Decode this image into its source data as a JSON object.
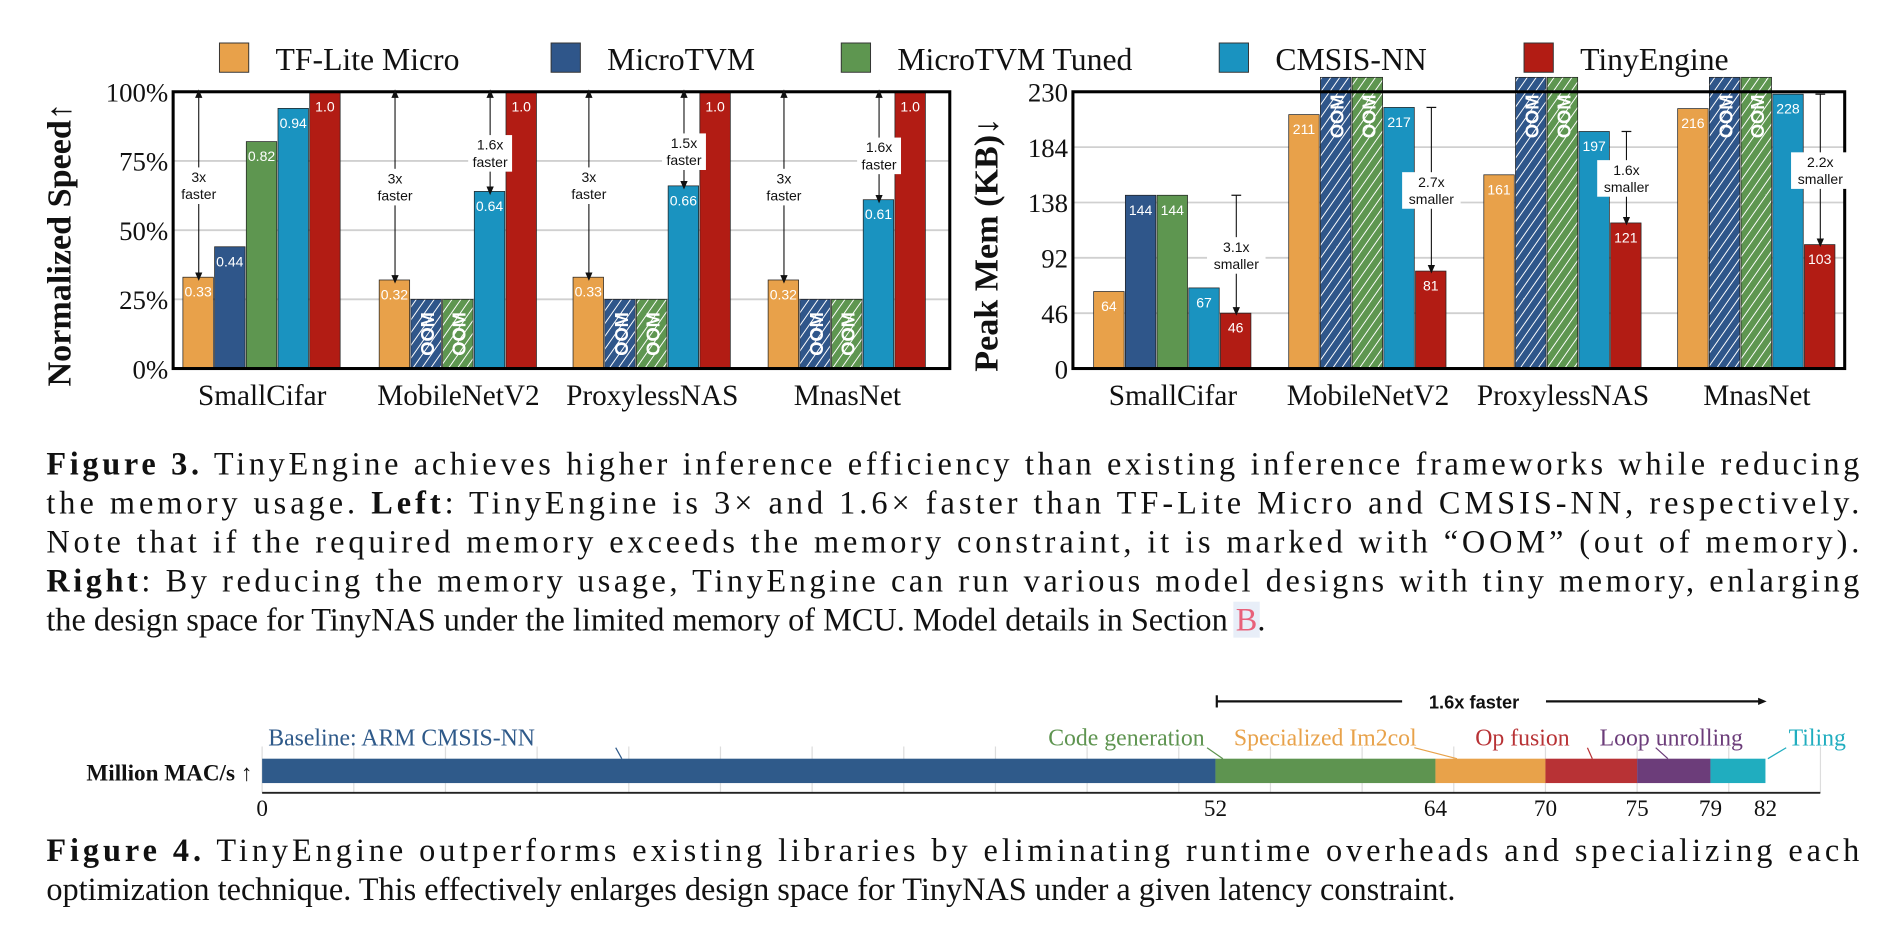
{
  "colors": {
    "tflite": "#E8A14A",
    "microtvm": "#2F568A",
    "microtvm_tuned": "#5E9650",
    "cmsis": "#1A93C0",
    "tinyengine": "#B21C14",
    "grid": "#d0d0d0",
    "section_link": "#E8617A"
  },
  "legend": [
    {
      "label": "TF-Lite Micro",
      "color": "#E8A14A"
    },
    {
      "label": "MicroTVM",
      "color": "#2F568A"
    },
    {
      "label": "MicroTVM Tuned",
      "color": "#5E9650"
    },
    {
      "label": "CMSIS-NN",
      "color": "#1A93C0"
    },
    {
      "label": "TinyEngine",
      "color": "#B21C14"
    }
  ],
  "chart_data": [
    {
      "type": "bar",
      "ylabel": "Normalized Speed↑",
      "ylim": [
        0,
        1.0
      ],
      "yticks": [
        "0%",
        "25%",
        "50%",
        "75%",
        "100%"
      ],
      "grid": true,
      "categories": [
        "SmallCifar",
        "MobileNetV2",
        "ProxylessNAS",
        "MnasNet"
      ],
      "oom_label": "OOM",
      "series": [
        {
          "name": "TF-Lite Micro",
          "values": [
            0.33,
            0.32,
            0.33,
            0.32
          ],
          "labels": [
            "0.33",
            "0.32",
            "0.33",
            "0.32"
          ]
        },
        {
          "name": "MicroTVM",
          "values": [
            0.44,
            null,
            null,
            null
          ],
          "labels": [
            "0.44",
            "OOM",
            "OOM",
            "OOM"
          ]
        },
        {
          "name": "MicroTVM Tuned",
          "values": [
            0.82,
            null,
            null,
            null
          ],
          "labels": [
            "0.82",
            "OOM",
            "OOM",
            "OOM"
          ]
        },
        {
          "name": "CMSIS-NN",
          "values": [
            0.94,
            0.64,
            0.66,
            0.61
          ],
          "labels": [
            "0.94",
            "0.64",
            "0.66",
            "0.61"
          ]
        },
        {
          "name": "TinyEngine",
          "values": [
            1.0,
            1.0,
            1.0,
            1.0
          ],
          "labels": [
            "1.0",
            "1.0",
            "1.0",
            "1.0"
          ]
        }
      ],
      "annotations": [
        {
          "category": 0,
          "series": 0,
          "text": [
            "3x",
            "faster"
          ]
        },
        {
          "category": 1,
          "series": 0,
          "text": [
            "3x",
            "faster"
          ]
        },
        {
          "category": 1,
          "series": 3,
          "text": [
            "1.6x",
            "faster"
          ]
        },
        {
          "category": 2,
          "series": 0,
          "text": [
            "3x",
            "faster"
          ]
        },
        {
          "category": 2,
          "series": 3,
          "text": [
            "1.5x",
            "faster"
          ]
        },
        {
          "category": 3,
          "series": 0,
          "text": [
            "3x",
            "faster"
          ]
        },
        {
          "category": 3,
          "series": 3,
          "text": [
            "1.6x",
            "faster"
          ]
        }
      ]
    },
    {
      "type": "bar",
      "ylabel": "Peak Mem (KB)↓",
      "ylim": [
        0,
        230
      ],
      "yticks": [
        "0",
        "46",
        "92",
        "138",
        "184",
        "230"
      ],
      "grid": true,
      "categories": [
        "SmallCifar",
        "MobileNetV2",
        "ProxylessNAS",
        "MnasNet"
      ],
      "oom_label": "OOM",
      "series": [
        {
          "name": "TF-Lite Micro",
          "values": [
            64,
            211,
            161,
            216
          ],
          "labels": [
            "64",
            "211",
            "161",
            "216"
          ]
        },
        {
          "name": "MicroTVM",
          "values": [
            144,
            null,
            null,
            null
          ],
          "labels": [
            "144",
            "OOM",
            "OOM",
            "OOM"
          ]
        },
        {
          "name": "MicroTVM Tuned",
          "values": [
            144,
            null,
            null,
            null
          ],
          "labels": [
            "144",
            "OOM",
            "OOM",
            "OOM"
          ]
        },
        {
          "name": "CMSIS-NN",
          "values": [
            67,
            217,
            197,
            228
          ],
          "labels": [
            "67",
            "217",
            "197",
            "228"
          ]
        },
        {
          "name": "TinyEngine",
          "values": [
            46,
            81,
            121,
            103
          ],
          "labels": [
            "46",
            "81",
            "121",
            "103"
          ]
        }
      ],
      "annotations": [
        {
          "category": 0,
          "from": 144,
          "to": 46,
          "text": [
            "3.1x",
            "smaller"
          ]
        },
        {
          "category": 1,
          "from": 217,
          "to": 81,
          "text": [
            "2.7x",
            "smaller"
          ]
        },
        {
          "category": 2,
          "from": 197,
          "to": 121,
          "text": [
            "1.6x",
            "smaller"
          ]
        },
        {
          "category": 3,
          "from": 228,
          "to": 103,
          "text": [
            "2.2x",
            "smaller"
          ]
        }
      ]
    },
    {
      "type": "bar",
      "orientation": "horizontal-stacked",
      "ylabel": "Million MAC/s ↑",
      "xlim": [
        0,
        82
      ],
      "xticks": [
        "0",
        "52",
        "64",
        "70",
        "75",
        "79",
        "82"
      ],
      "speedup_label": "1.6x faster",
      "segments": [
        {
          "name": "Baseline: ARM CMSIS-NN",
          "start": 0,
          "end": 52,
          "color": "#2F5A8A"
        },
        {
          "name": "Code generation",
          "start": 52,
          "end": 64,
          "color": "#5E9450"
        },
        {
          "name": "Specialized Im2col",
          "start": 64,
          "end": 70,
          "color": "#E8A24A"
        },
        {
          "name": "Op fusion",
          "start": 70,
          "end": 75,
          "color": "#B83235"
        },
        {
          "name": "Loop unrolling",
          "start": 75,
          "end": 79,
          "color": "#6C3D7A"
        },
        {
          "name": "Tiling",
          "start": 79,
          "end": 82,
          "color": "#20ADBF"
        }
      ]
    }
  ],
  "figure3_caption": [
    [
      {
        "t": "Figure 3.",
        "b": true
      },
      {
        "t": " TinyEngine achieves higher inference efficiency than existing inference frameworks while reducing"
      }
    ],
    [
      {
        "t": "the memory usage. "
      },
      {
        "t": "Left",
        "b": true
      },
      {
        "t": ": TinyEngine is 3× and 1.6× faster than TF-Lite Micro and CMSIS-NN, respectively."
      }
    ],
    [
      {
        "t": "Note that if the required memory exceeds the memory constraint, it is marked with “OOM” (out of memory)."
      }
    ],
    [
      {
        "t": "Right",
        "b": true
      },
      {
        "t": ": By reducing the memory usage, TinyEngine can run various model designs with tiny memory, enlarging"
      }
    ],
    [
      {
        "t": "the design space for TinyNAS under the limited memory of MCU. Model details in Section "
      },
      {
        "t": "B",
        "link": true
      },
      {
        "t": "."
      }
    ]
  ],
  "figure4_caption": [
    [
      {
        "t": "Figure 4.",
        "b": true
      },
      {
        "t": " TinyEngine outperforms existing libraries by eliminating runtime overheads and specializing each"
      }
    ],
    [
      {
        "t": "optimization technique. This effectively enlarges design space for TinyNAS under a given latency constraint."
      }
    ]
  ]
}
